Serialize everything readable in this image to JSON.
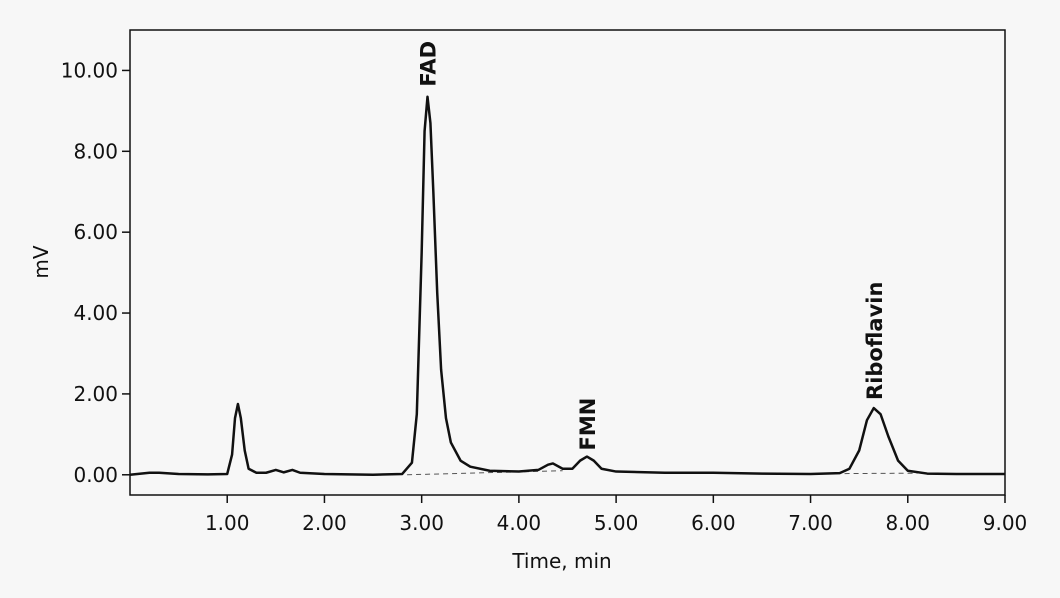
{
  "chart_data": {
    "type": "line",
    "xlabel": "Time, min",
    "ylabel": "mV",
    "xlim": [
      0,
      9
    ],
    "ylim": [
      -0.5,
      11
    ],
    "xticks": [
      {
        "value": 1,
        "label": "1.00"
      },
      {
        "value": 2,
        "label": "2.00"
      },
      {
        "value": 3,
        "label": "3.00"
      },
      {
        "value": 4,
        "label": "4.00"
      },
      {
        "value": 5,
        "label": "5.00"
      },
      {
        "value": 6,
        "label": "6.00"
      },
      {
        "value": 7,
        "label": "7.00"
      },
      {
        "value": 8,
        "label": "8.00"
      },
      {
        "value": 9,
        "label": "9.00"
      }
    ],
    "yticks": [
      {
        "value": 0,
        "label": "0.00"
      },
      {
        "value": 2,
        "label": "2.00"
      },
      {
        "value": 4,
        "label": "4.00"
      },
      {
        "value": 6,
        "label": "6.00"
      },
      {
        "value": 8,
        "label": "8.00"
      },
      {
        "value": 10,
        "label": "10.00"
      }
    ],
    "color": "#111111",
    "x": [
      0.0,
      0.2,
      0.3,
      0.5,
      0.8,
      1.0,
      1.05,
      1.08,
      1.11,
      1.14,
      1.18,
      1.22,
      1.3,
      1.4,
      1.5,
      1.58,
      1.67,
      1.75,
      2.0,
      2.5,
      2.8,
      2.9,
      2.95,
      3.0,
      3.03,
      3.06,
      3.09,
      3.12,
      3.16,
      3.2,
      3.25,
      3.3,
      3.4,
      3.5,
      3.7,
      4.0,
      4.2,
      4.3,
      4.35,
      4.45,
      4.55,
      4.63,
      4.7,
      4.77,
      4.85,
      5.0,
      5.5,
      6.0,
      6.5,
      7.0,
      7.3,
      7.4,
      7.5,
      7.58,
      7.65,
      7.72,
      7.8,
      7.9,
      8.0,
      8.2,
      8.5,
      9.0
    ],
    "values": [
      0.0,
      0.05,
      0.05,
      0.02,
      0.01,
      0.02,
      0.5,
      1.4,
      1.75,
      1.4,
      0.6,
      0.15,
      0.05,
      0.05,
      0.12,
      0.06,
      0.12,
      0.05,
      0.02,
      0.0,
      0.02,
      0.3,
      1.5,
      5.5,
      8.5,
      9.35,
      8.7,
      7.0,
      4.5,
      2.6,
      1.4,
      0.8,
      0.35,
      0.2,
      0.1,
      0.08,
      0.12,
      0.25,
      0.28,
      0.15,
      0.15,
      0.35,
      0.45,
      0.35,
      0.15,
      0.08,
      0.05,
      0.05,
      0.03,
      0.02,
      0.04,
      0.15,
      0.6,
      1.35,
      1.65,
      1.5,
      0.95,
      0.35,
      0.1,
      0.03,
      0.02,
      0.02
    ],
    "baselines": [
      {
        "x": [
          2.85,
          4.45
        ],
        "values": [
          0.0,
          0.1
        ]
      },
      {
        "x": [
          7.35,
          8.1
        ],
        "values": [
          0.03,
          0.04
        ]
      }
    ],
    "annotations": [
      {
        "text": "FAD",
        "x": 3.06,
        "y": 9.6
      },
      {
        "text": "FMN",
        "x": 4.7,
        "y": 0.6
      },
      {
        "text": "Riboflavin",
        "x": 7.65,
        "y": 1.85
      }
    ]
  }
}
